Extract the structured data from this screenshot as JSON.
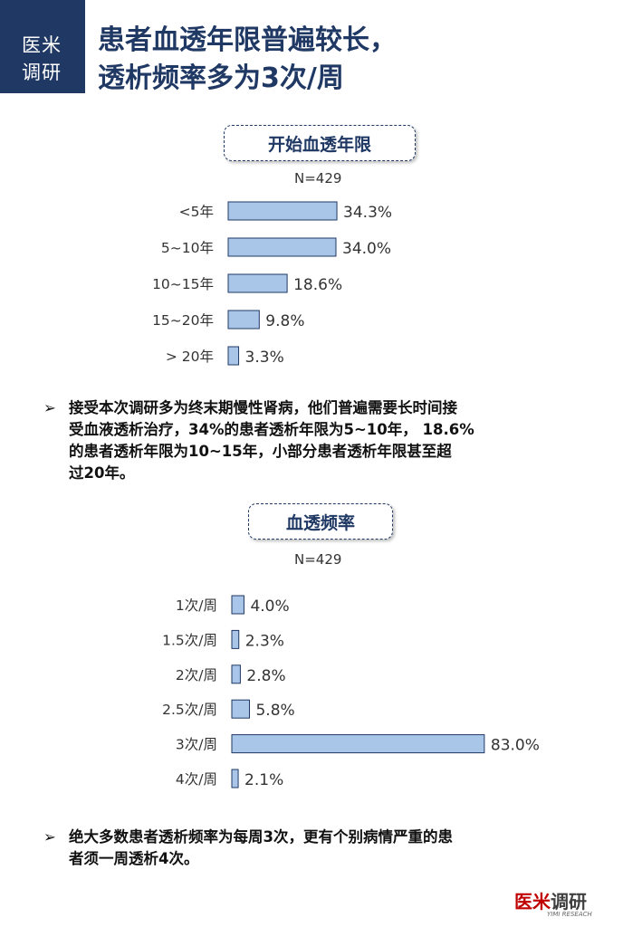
{
  "brand": {
    "line1": "医米",
    "line2": "调研"
  },
  "title": {
    "line1": "患者血透年限普遍较长，",
    "line2": "透析频率多为3次/周"
  },
  "charts_meta": [
    {
      "pill_label": "开始血透年限",
      "n_label": "N=429"
    },
    {
      "pill_label": "血透频率",
      "n_label": "N=429"
    }
  ],
  "chart_data": [
    {
      "type": "bar",
      "orientation": "horizontal",
      "title": "开始血透年限",
      "categories": [
        "<5年",
        "5~10年",
        "10~15年",
        "15~20年",
        "> 20年"
      ],
      "values": [
        34.3,
        34.0,
        18.6,
        9.8,
        3.3
      ],
      "value_labels": [
        "34.3%",
        "34.0%",
        "18.6%",
        "9.8%",
        "3.3%"
      ],
      "unit": "%",
      "bar_color": "#a9c6e8",
      "bar_border": "#1f3864",
      "grid": false,
      "xaxis_visible": false
    },
    {
      "type": "bar",
      "orientation": "horizontal",
      "title": "血透频率",
      "categories": [
        "1次/周",
        "1.5次/周",
        "2次/周",
        "2.5次/周",
        "3次/周",
        "4次/周"
      ],
      "values": [
        4.0,
        2.3,
        2.8,
        5.8,
        83.0,
        2.1
      ],
      "value_labels": [
        "4.0%",
        "2.3%",
        "2.8%",
        "5.8%",
        "83.0%",
        "2.1%"
      ],
      "unit": "%",
      "bar_color": "#a9c6e8",
      "bar_border": "#1f3864",
      "grid": false,
      "xaxis_visible": false
    }
  ],
  "bullets": [
    {
      "marker": "➢",
      "lines": [
        "接受本次调研多为终末期慢性肾病，他们普遍需要长时间接",
        "受血液透析治疗，34%的患者透析年限为5~10年， 18.6%",
        "的患者透析年限为10~15年，小部分患者透析年限甚至超",
        "过20年。"
      ]
    },
    {
      "marker": "➢",
      "lines": [
        "绝大多数患者透析频率为每周3次，更有个别病情严重的患",
        "者须一周透析4次。"
      ]
    }
  ],
  "logo": {
    "brand_red": "医米",
    "brand_gray": "调研",
    "sub": "YIMI RESEACH"
  },
  "colors": {
    "accent": "#1f3864",
    "bar": "#a9c6e8",
    "logo_red": "#c00000"
  }
}
